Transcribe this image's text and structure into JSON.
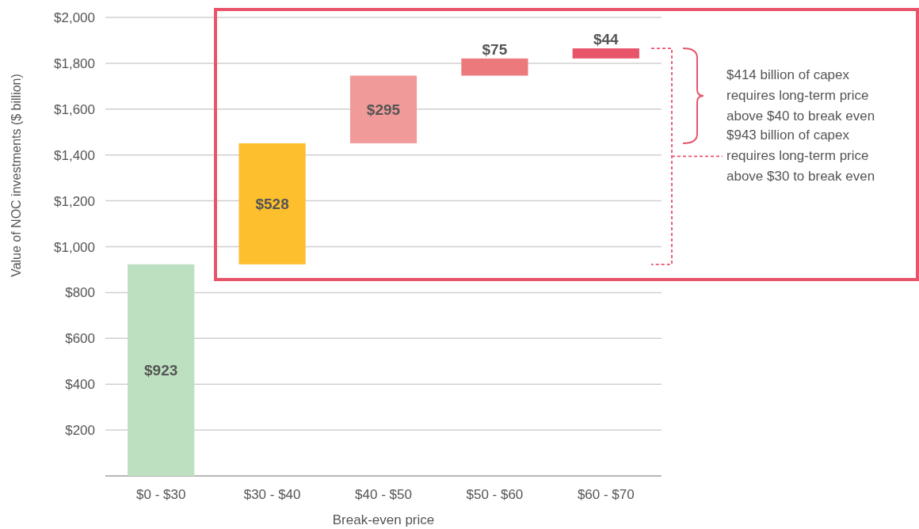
{
  "chart_data": {
    "type": "bar",
    "xlabel": "Break-even price",
    "ylabel": "Value of NOC investments ($ billion)",
    "categories": [
      "$0 - $30",
      "$30 - $40",
      "$40 - $50",
      "$50 - $60",
      "$60 - $70"
    ],
    "values": [
      923,
      528,
      295,
      75,
      44
    ],
    "base": [
      0,
      923,
      1451,
      1746,
      1821
    ],
    "colors": [
      "#bde0c0",
      "#fdbf2d",
      "#f09b9a",
      "#ec7a7d",
      "#e8546a"
    ],
    "value_labels": [
      "$923",
      "$528",
      "$295",
      "$75",
      "$44"
    ],
    "ylim": [
      0,
      2000
    ],
    "yticks": [
      {
        "value": 0,
        "label": null
      },
      {
        "value": 200,
        "label": "$200"
      },
      {
        "value": 400,
        "label": "$400"
      },
      {
        "value": 600,
        "label": "$600"
      },
      {
        "value": 800,
        "label": "$800"
      },
      {
        "value": 1000,
        "label": "$1,000"
      },
      {
        "value": 1200,
        "label": "$1,200"
      },
      {
        "value": 1400,
        "label": "$1,400"
      },
      {
        "value": 1600,
        "label": "$1,600"
      },
      {
        "value": 1800,
        "label": "$1,800"
      },
      {
        "value": 2000,
        "label": "$2,000"
      }
    ],
    "grid": "y",
    "annotations": [
      "$414 billion of capex requires long-term price above $40 to break even",
      "$943 billion of capex requires long-term price above $30 to break even"
    ]
  }
}
